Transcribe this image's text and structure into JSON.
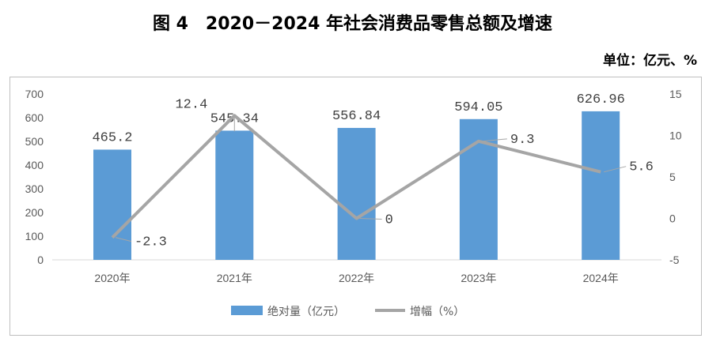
{
  "title": "图 4　2020－2024 年社会消费品零售总额及增速",
  "unit": "单位：亿元、%",
  "chart_data": {
    "type": "bar+line",
    "categories": [
      "2020年",
      "2021年",
      "2022年",
      "2023年",
      "2024年"
    ],
    "series": [
      {
        "name": "绝对量（亿元）",
        "type": "bar",
        "axis": "left",
        "color": "#5b9bd5",
        "values": [
          465.2,
          545.34,
          556.84,
          594.05,
          626.96
        ],
        "labels": [
          "465.2",
          "545.34",
          "556.84",
          "594.05",
          "626.96"
        ]
      },
      {
        "name": "增幅（%）",
        "type": "line",
        "axis": "right",
        "color": "#a5a5a5",
        "values": [
          -2.3,
          12.4,
          0,
          9.3,
          5.6
        ],
        "labels": [
          "-2.3",
          "12.4",
          "0",
          "9.3",
          "5.6"
        ]
      }
    ],
    "left_axis": {
      "ylim": [
        0,
        700
      ],
      "ticks": [
        "0",
        "100",
        "200",
        "300",
        "400",
        "500",
        "600",
        "700"
      ]
    },
    "right_axis": {
      "ylim": [
        -5,
        15
      ],
      "ticks": [
        "-5",
        "0",
        "5",
        "10",
        "15"
      ]
    },
    "legend_position": "bottom",
    "grid": false
  }
}
